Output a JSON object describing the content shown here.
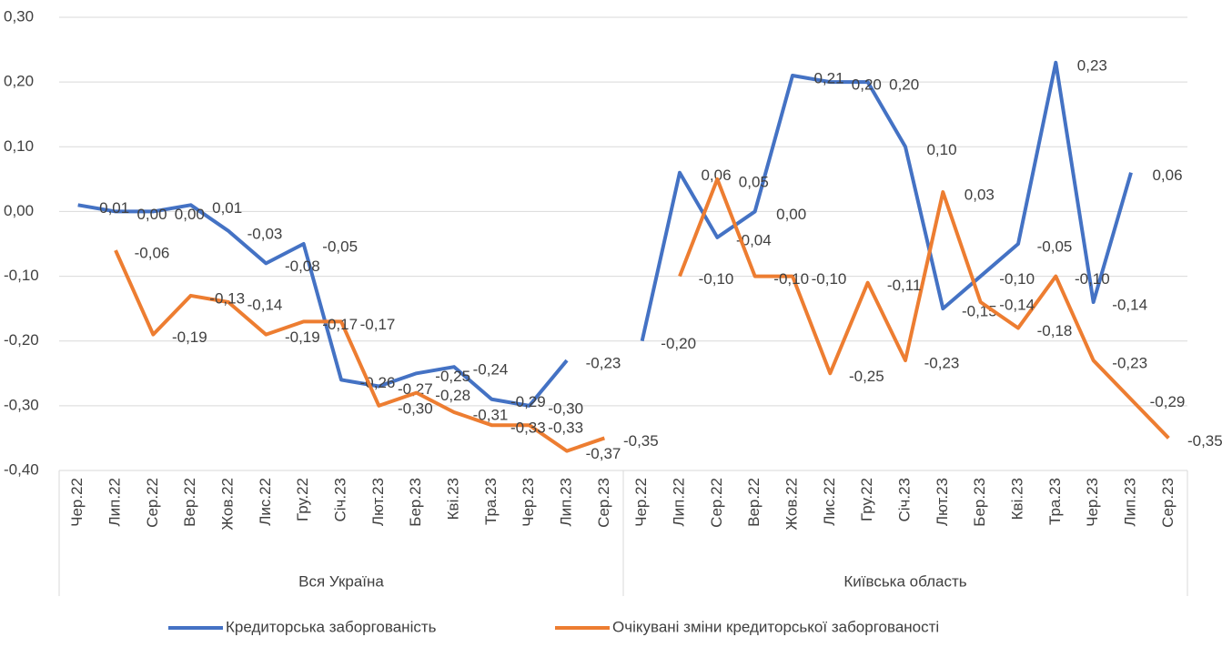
{
  "chart_data": {
    "type": "line",
    "categories": [
      "Чер.22",
      "Лип.22",
      "Сер.22",
      "Вер.22",
      "Жов.22",
      "Лис.22",
      "Гру.22",
      "Січ.23",
      "Лют.23",
      "Бер.23",
      "Кві.23",
      "Тра.23",
      "Чер.23",
      "Лип.23",
      "Сер.23",
      "Чер.22",
      "Лип.22",
      "Сер.22",
      "Вер.22",
      "Жов.22",
      "Лис.22",
      "Гру.22",
      "Січ.23",
      "Лют.23",
      "Бер.23",
      "Кві.23",
      "Тра.23",
      "Чер.23",
      "Лип.23",
      "Сер.23"
    ],
    "groups": [
      "Вся Україна",
      "Київська область"
    ],
    "series": [
      {
        "name": "Кредиторська заборгованість",
        "color": "#4472c4",
        "values": [
          0.01,
          0.0,
          0.0,
          0.01,
          -0.03,
          -0.08,
          -0.05,
          -0.26,
          -0.27,
          -0.25,
          -0.24,
          -0.29,
          -0.3,
          -0.23,
          null,
          -0.2,
          0.06,
          -0.04,
          0.0,
          0.21,
          0.2,
          0.2,
          0.1,
          -0.15,
          -0.1,
          -0.05,
          0.23,
          -0.14,
          0.06,
          null
        ],
        "value_labels": [
          "0,01",
          "0,00",
          "0,00",
          "0,01",
          "-0,03",
          "-0,08",
          "-0,05",
          "-0,26",
          "-0,27",
          "-0,25",
          "-0,24",
          "-0,29",
          "-0,30",
          "-0,23",
          null,
          "-0,20",
          "0,06",
          "-0,04",
          "0,00",
          "0,21",
          "0,20",
          "0,20",
          "0,10",
          "-0,15",
          "-0,10",
          "-0,05",
          "0,23",
          "-0,14",
          "0,06",
          null
        ]
      },
      {
        "name": "Очікувані зміни кредиторської заборгованості",
        "color": "#ed7d31",
        "values": [
          null,
          -0.06,
          -0.19,
          -0.13,
          -0.14,
          -0.19,
          -0.17,
          -0.17,
          -0.3,
          -0.28,
          -0.31,
          -0.33,
          -0.33,
          -0.37,
          -0.35,
          null,
          -0.1,
          0.05,
          -0.1,
          -0.1,
          -0.25,
          -0.11,
          -0.23,
          0.03,
          -0.14,
          -0.18,
          -0.1,
          -0.23,
          -0.29,
          -0.35
        ],
        "value_labels": [
          null,
          "-0,06",
          "-0,19",
          "-0,13",
          "-0,14",
          "-0,19",
          "-0,17",
          "-0,17",
          "-0,30",
          "-0,28",
          "-0,31",
          "-0,33",
          "-0,33",
          "-0,37",
          "-0,35",
          null,
          "-0,10",
          "0,05",
          "-0,10",
          "-0,10",
          "-0,25",
          "-0,11",
          "-0,23",
          "0,03",
          "-0,14",
          "-0,18",
          "-0,10",
          "-0,23",
          "-0,29",
          "-0,35"
        ]
      }
    ],
    "ylim": [
      -0.4,
      0.3
    ],
    "yticks": [
      {
        "value": 0.3,
        "label": "0,30"
      },
      {
        "value": 0.2,
        "label": "0,20"
      },
      {
        "value": 0.1,
        "label": "0,10"
      },
      {
        "value": 0,
        "label": "0,00"
      },
      {
        "value": -0.1,
        "label": "-0,10"
      },
      {
        "value": -0.2,
        "label": "-0,20"
      },
      {
        "value": -0.3,
        "label": "-0,30"
      },
      {
        "value": -0.4,
        "label": "-0,40"
      }
    ],
    "grid": true,
    "legend": "bottom"
  }
}
